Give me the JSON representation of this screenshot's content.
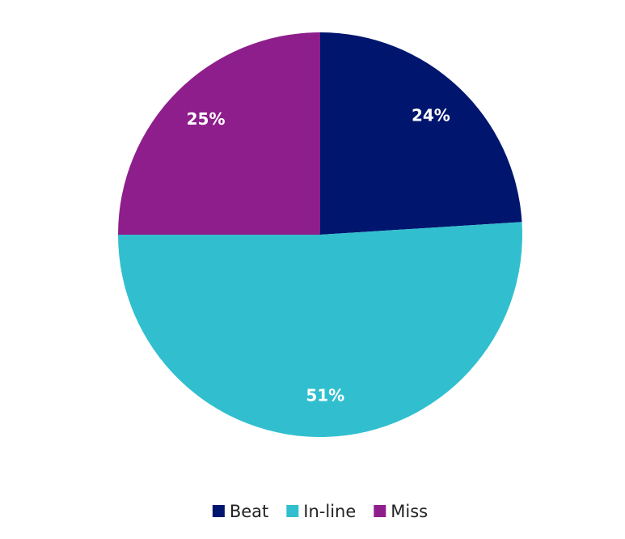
{
  "chart_data": {
    "type": "pie",
    "categories": [
      "Beat",
      "In-line",
      "Miss"
    ],
    "values": [
      24,
      51,
      25
    ],
    "value_labels": [
      "24%",
      "51%",
      "25%"
    ],
    "colors": [
      "#00166e",
      "#31bfcf",
      "#8e1e8c"
    ],
    "legend": "bottom"
  }
}
